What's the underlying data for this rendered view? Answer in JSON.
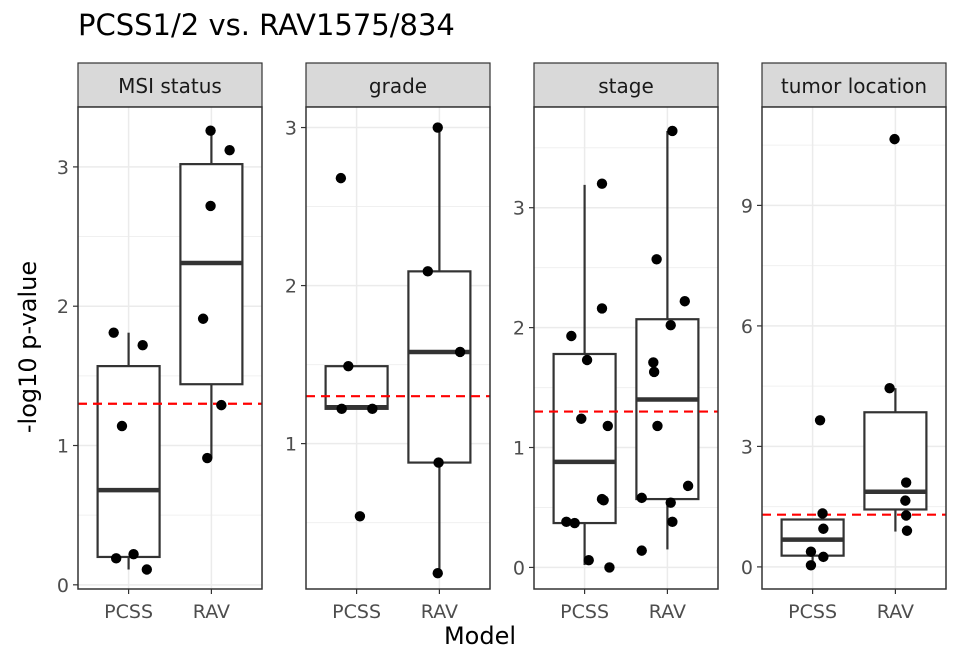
{
  "chart_data": {
    "type": "box",
    "title": "PCSS1/2 vs. RAV1575/834",
    "xlabel": "Model",
    "ylabel": "-log10 p-value",
    "threshold": 1.3,
    "threshold_color": "#ff0000",
    "categories": [
      "PCSS",
      "RAV"
    ],
    "panels": [
      {
        "name": "MSI status",
        "ylim": [
          -0.03,
          3.43
        ],
        "yticks": [
          0,
          1,
          2,
          3
        ],
        "groups": [
          {
            "name": "PCSS",
            "box": {
              "lower": 0.11,
              "q1": 0.2,
              "median": 0.68,
              "q3": 1.57,
              "upper": 1.81
            },
            "points": [
              [
                -0.18,
                1.81
              ],
              [
                0.17,
                1.72
              ],
              [
                -0.08,
                1.14
              ],
              [
                0.06,
                0.22
              ],
              [
                -0.15,
                0.19
              ],
              [
                0.22,
                0.11
              ]
            ]
          },
          {
            "name": "RAV",
            "box": {
              "lower": 0.91,
              "q1": 1.44,
              "median": 2.31,
              "q3": 3.02,
              "upper": 3.26
            },
            "points": [
              [
                -0.01,
                3.26
              ],
              [
                0.22,
                3.12
              ],
              [
                -0.01,
                2.72
              ],
              [
                -0.1,
                1.91
              ],
              [
                0.12,
                1.29
              ],
              [
                -0.05,
                0.91
              ]
            ]
          }
        ]
      },
      {
        "name": "grade",
        "ylim": [
          0.08,
          3.13
        ],
        "yticks": [
          1,
          2,
          3
        ],
        "groups": [
          {
            "name": "PCSS",
            "box": {
              "lower": 1.22,
              "q1": 1.22,
              "median": 1.23,
              "q3": 1.49,
              "upper": 1.49
            },
            "points": [
              [
                -0.19,
                2.68
              ],
              [
                -0.1,
                1.49
              ],
              [
                -0.18,
                1.22
              ],
              [
                0.19,
                1.22
              ],
              [
                0.04,
                0.54
              ]
            ]
          },
          {
            "name": "RAV",
            "box": {
              "lower": 0.18,
              "q1": 0.88,
              "median": 1.58,
              "q3": 2.09,
              "upper": 3.0
            },
            "points": [
              [
                -0.02,
                3.0
              ],
              [
                -0.14,
                2.09
              ],
              [
                0.25,
                1.58
              ],
              [
                -0.01,
                0.88
              ],
              [
                -0.02,
                0.18
              ]
            ]
          }
        ]
      },
      {
        "name": "stage",
        "ylim": [
          -0.18,
          3.84
        ],
        "yticks": [
          0,
          1,
          2,
          3
        ],
        "groups": [
          {
            "name": "PCSS",
            "box": {
              "lower": 0.02,
              "q1": 0.37,
              "median": 0.88,
              "q3": 1.78,
              "upper": 3.19
            },
            "points": [
              [
                0.21,
                3.2
              ],
              [
                0.21,
                2.16
              ],
              [
                -0.16,
                1.93
              ],
              [
                0.03,
                1.73
              ],
              [
                -0.04,
                1.24
              ],
              [
                0.28,
                1.18
              ],
              [
                0.21,
                0.57
              ],
              [
                0.23,
                0.56
              ],
              [
                -0.22,
                0.38
              ],
              [
                -0.12,
                0.37
              ],
              [
                0.05,
                0.06
              ],
              [
                0.3,
                0.0
              ]
            ]
          },
          {
            "name": "RAV",
            "box": {
              "lower": 0.15,
              "q1": 0.57,
              "median": 1.4,
              "q3": 2.07,
              "upper": 3.64
            },
            "points": [
              [
                0.06,
                3.64
              ],
              [
                -0.13,
                2.57
              ],
              [
                0.21,
                2.22
              ],
              [
                0.04,
                2.02
              ],
              [
                -0.17,
                1.71
              ],
              [
                -0.16,
                1.63
              ],
              [
                -0.12,
                1.18
              ],
              [
                0.25,
                0.68
              ],
              [
                -0.31,
                0.58
              ],
              [
                0.04,
                0.54
              ],
              [
                0.06,
                0.38
              ],
              [
                -0.31,
                0.14
              ]
            ]
          }
        ]
      },
      {
        "name": "tumor location",
        "ylim": [
          -0.55,
          11.45
        ],
        "yticks": [
          0,
          3,
          6,
          9
        ],
        "groups": [
          {
            "name": "PCSS",
            "box": {
              "lower": 0.03,
              "q1": 0.28,
              "median": 0.68,
              "q3": 1.18,
              "upper": 1.2
            },
            "points": [
              [
                0.09,
                3.65
              ],
              [
                0.12,
                1.33
              ],
              [
                0.13,
                0.95
              ],
              [
                -0.02,
                0.38
              ],
              [
                0.13,
                0.25
              ],
              [
                -0.02,
                0.04
              ]
            ]
          },
          {
            "name": "RAV",
            "box": {
              "lower": 0.88,
              "q1": 1.43,
              "median": 1.87,
              "q3": 3.85,
              "upper": 4.45
            },
            "points": [
              [
                -0.01,
                10.65
              ],
              [
                -0.07,
                4.45
              ],
              [
                0.13,
                2.1
              ],
              [
                0.12,
                1.65
              ],
              [
                0.13,
                1.28
              ],
              [
                0.14,
                0.9
              ]
            ]
          }
        ]
      }
    ]
  }
}
